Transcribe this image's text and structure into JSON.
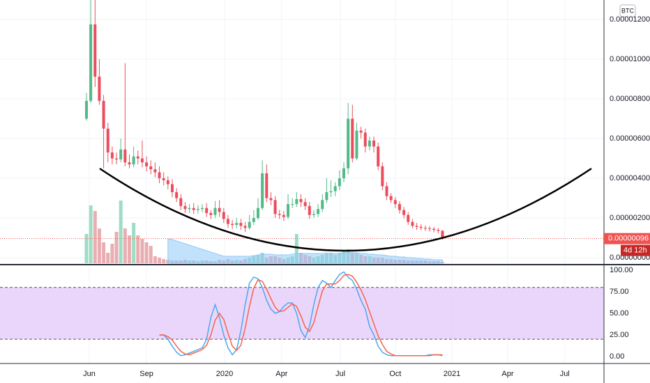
{
  "chart_data": {
    "type": "candlestick",
    "currency": "BTC",
    "countdown": "4d 12h",
    "xlim": [
      -20.16,
      120.65
    ],
    "xticks": [
      {
        "value": 0.65,
        "label": "Jun"
      },
      {
        "value": 14,
        "label": "Sep"
      },
      {
        "value": 32.2,
        "label": "2020"
      },
      {
        "value": 45.5,
        "label": "Apr"
      },
      {
        "value": 59.2,
        "label": "Jul"
      },
      {
        "value": 72,
        "label": "Oct"
      },
      {
        "value": 85.2,
        "label": "2021"
      },
      {
        "value": 98.2,
        "label": "Apr"
      },
      {
        "value": 111.5,
        "label": "Jul"
      }
    ],
    "ylim": [
      -2.8e-07,
      1.298e-05
    ],
    "yticks": [
      {
        "value": 0,
        "label": "0.00000000"
      },
      {
        "value": 2e-06,
        "label": "0.00000200"
      },
      {
        "value": 4e-06,
        "label": "0.00000400"
      },
      {
        "value": 6e-06,
        "label": "0.00000600"
      },
      {
        "value": 8e-06,
        "label": "0.00000800"
      },
      {
        "value": 1e-05,
        "label": "0.00001000"
      },
      {
        "value": 1.2e-05,
        "label": "0.00001200"
      }
    ],
    "grid": true,
    "candles": {
      "up_color": "#53b987",
      "down_color": "#eb4d5c",
      "open": [
        7e-06,
        7.9e-06,
        1.175e-05,
        9.12e-06,
        7.9e-06,
        6.5e-06,
        5.3e-06,
        5e-06,
        4.95e-06,
        5.45e-06,
        4.8e-06,
        4.7e-06,
        5.1e-06,
        5e-06,
        4.8e-06,
        4.6e-06,
        4.45e-06,
        4.3e-06,
        4e-06,
        3.9e-06,
        3.7e-06,
        3.3e-06,
        3e-06,
        2.6e-06,
        2.45e-06,
        2.5e-06,
        2.4e-06,
        2.45e-06,
        2.5e-06,
        2.25e-06,
        2.15e-06,
        2.5e-06,
        2.3e-06,
        1.95e-06,
        1.7e-06,
        1.65e-06,
        1.75e-06,
        1.6e-06,
        1.5e-06,
        1.8e-06,
        2e-06,
        2.5e-06,
        4.25e-06,
        3e-06,
        2.9e-06,
        2.2e-06,
        2.15e-06,
        2.05e-06,
        2.7e-06,
        2.7e-06,
        2.95e-06,
        2.8e-06,
        2.6e-06,
        2.15e-06,
        2.2e-06,
        2.45e-06,
        2.9e-06,
        3.3e-06,
        3.35e-06,
        3.6e-06,
        4e-06,
        4.5e-06,
        7e-06,
        5e-06,
        6.4e-06,
        6.3e-06,
        5.6e-06,
        5.9e-06,
        5.6e-06,
        4.6e-06,
        3.6e-06,
        3.1e-06,
        2.9e-06,
        2.7e-06,
        2.4e-06,
        2.15e-06,
        1.8e-06,
        1.6e-06,
        1.55e-06,
        1.5e-06,
        1.48e-06,
        1.45e-06,
        1.4e-06,
        1.35e-06
      ],
      "high": [
        8.3e-06,
        1.3e-05,
        1.3e-05,
        1e-05,
        8.2e-06,
        6.8e-06,
        5.6e-06,
        5.3e-06,
        6e-06,
        9.8e-06,
        5.2e-06,
        5.6e-06,
        5.4e-06,
        5.9e-06,
        5.1e-06,
        4.9e-06,
        4.8e-06,
        4.6e-06,
        4.3e-06,
        4.1e-06,
        3.95e-06,
        3.5e-06,
        3.2e-06,
        2.8e-06,
        2.7e-06,
        2.75e-06,
        2.65e-06,
        2.7e-06,
        2.75e-06,
        2.4e-06,
        2.85e-06,
        2.9e-06,
        2.5e-06,
        2.15e-06,
        1.9e-06,
        2e-06,
        1.95e-06,
        1.8e-06,
        2.15e-06,
        2.4e-06,
        3e-06,
        4.9e-06,
        4.7e-06,
        3.3e-06,
        3.1e-06,
        2.4e-06,
        2.35e-06,
        3.2e-06,
        3e-06,
        3.3e-06,
        3.2e-06,
        3e-06,
        2.8e-06,
        2.4e-06,
        2.7e-06,
        3.2e-06,
        4e-06,
        3.9e-06,
        3.8e-06,
        4.4e-06,
        4.8e-06,
        7.8e-06,
        7.7e-06,
        6.8e-06,
        6.6e-06,
        6.5e-06,
        6.1e-06,
        6.1e-06,
        5.8e-06,
        4.8e-06,
        3.8e-06,
        3.25e-06,
        3.05e-06,
        2.85e-06,
        2.55e-06,
        2.3e-06,
        1.95e-06,
        1.75e-06,
        1.68e-06,
        1.62e-06,
        1.58e-06,
        1.55e-06,
        1.5e-06,
        1.4e-06
      ],
      "low": [
        6.9e-06,
        7.8e-06,
        8.6e-06,
        7.7e-06,
        4.5e-06,
        4.8e-06,
        4.7e-06,
        4.7e-06,
        4.8e-06,
        4.6e-06,
        4.5e-06,
        4.55e-06,
        4.7e-06,
        4.55e-06,
        4.35e-06,
        4.2e-06,
        4.05e-06,
        3.75e-06,
        3.65e-06,
        3.45e-06,
        3.05e-06,
        2.8e-06,
        2.4e-06,
        2.25e-06,
        2.25e-06,
        2.2e-06,
        2.22e-06,
        2.28e-06,
        2.05e-06,
        1.95e-06,
        2e-06,
        2.05e-06,
        1.75e-06,
        1.5e-06,
        1.45e-06,
        1.48e-06,
        1.4e-06,
        1.3e-06,
        1.4e-06,
        1.65e-06,
        1.9e-06,
        2.4e-06,
        2.8e-06,
        2.65e-06,
        2e-06,
        1.95e-06,
        1.85e-06,
        1.95e-06,
        2.5e-06,
        2.55e-06,
        2.55e-06,
        2.4e-06,
        1.95e-06,
        2e-06,
        2.05e-06,
        2.3e-06,
        2.75e-06,
        3.05e-06,
        3.1e-06,
        3.4e-06,
        3.8e-06,
        4.2e-06,
        4.8e-06,
        4.9e-06,
        6e-06,
        5.3e-06,
        5.4e-06,
        5.3e-06,
        4.4e-06,
        3.4e-06,
        2.9e-06,
        2.75e-06,
        2.5e-06,
        2.22e-06,
        1.98e-06,
        1.65e-06,
        1.48e-06,
        1.4e-06,
        1.38e-06,
        1.35e-06,
        1.32e-06,
        1.28e-06,
        1.22e-06,
        9e-07
      ],
      "close": [
        7.9e-06,
        1.175e-05,
        9.12e-06,
        7.9e-06,
        6.5e-06,
        5.3e-06,
        5e-06,
        4.95e-06,
        5.45e-06,
        4.8e-06,
        4.7e-06,
        5.1e-06,
        5e-06,
        4.8e-06,
        4.6e-06,
        4.45e-06,
        4.3e-06,
        4e-06,
        3.9e-06,
        3.7e-06,
        3.3e-06,
        3e-06,
        2.6e-06,
        2.45e-06,
        2.5e-06,
        2.4e-06,
        2.45e-06,
        2.5e-06,
        2.25e-06,
        2.15e-06,
        2.5e-06,
        2.3e-06,
        1.95e-06,
        1.7e-06,
        1.65e-06,
        1.75e-06,
        1.6e-06,
        1.5e-06,
        1.8e-06,
        2e-06,
        2.5e-06,
        4.25e-06,
        3e-06,
        2.9e-06,
        2.2e-06,
        2.15e-06,
        2.05e-06,
        2.7e-06,
        2.7e-06,
        2.95e-06,
        2.8e-06,
        2.6e-06,
        2.15e-06,
        2.2e-06,
        2.45e-06,
        2.9e-06,
        3.3e-06,
        3.35e-06,
        3.6e-06,
        4e-06,
        4.5e-06,
        7e-06,
        5e-06,
        6.4e-06,
        6.3e-06,
        5.6e-06,
        5.9e-06,
        5.6e-06,
        4.6e-06,
        3.6e-06,
        3.1e-06,
        2.9e-06,
        2.7e-06,
        2.4e-06,
        2.15e-06,
        1.8e-06,
        1.6e-06,
        1.55e-06,
        1.5e-06,
        1.48e-06,
        1.45e-06,
        1.4e-06,
        1.35e-06,
        9.6e-07
      ]
    },
    "volume": {
      "up_color": "#9fdcc4",
      "down_color": "#e9aeb2",
      "values": [
        42,
        83,
        75,
        50,
        30,
        15,
        28,
        45,
        90,
        50,
        40,
        58,
        40,
        35,
        30,
        25,
        10,
        8,
        6,
        5,
        4,
        4,
        4,
        5,
        4,
        4,
        3,
        4,
        4,
        3,
        3,
        5,
        4,
        6,
        4,
        5,
        4,
        6,
        8,
        10,
        12,
        15,
        8,
        10,
        10,
        8,
        6,
        8,
        10,
        42,
        15,
        12,
        10,
        8,
        10,
        12,
        15,
        15,
        12,
        15,
        18,
        20,
        15,
        15,
        12,
        10,
        10,
        8,
        8,
        8,
        6,
        6,
        5,
        5,
        5,
        4,
        4,
        4,
        4,
        4,
        3,
        3,
        3,
        2
      ],
      "ma": {
        "color": "#90caf9",
        "values": [
          null,
          null,
          null,
          null,
          null,
          null,
          null,
          null,
          null,
          null,
          null,
          null,
          null,
          null,
          null,
          null,
          null,
          null,
          null,
          35,
          34,
          32,
          30,
          28,
          26,
          24,
          22,
          20,
          18,
          16,
          14,
          12,
          10,
          10,
          10,
          10,
          10,
          10,
          10,
          11,
          12,
          13,
          13,
          13,
          12,
          12,
          12,
          12,
          13,
          14,
          14,
          14,
          14,
          14,
          14,
          14,
          14,
          14,
          14,
          14,
          15,
          15,
          15,
          15,
          14,
          14,
          13,
          13,
          12,
          12,
          11,
          10,
          10,
          9,
          9,
          8,
          8,
          7,
          7,
          6,
          6,
          5,
          5,
          5
        ]
      }
    },
    "last_price": {
      "value": 9.6e-07,
      "label": "0.00000096",
      "color": "#ef5350"
    },
    "oscillator": {
      "type": "line",
      "ylim": [
        -8.1,
        104.8
      ],
      "yticks": [
        {
          "value": 100,
          "label": "100.00"
        },
        {
          "value": 75,
          "label": "75.00"
        },
        {
          "value": 50,
          "label": "50.00"
        },
        {
          "value": 25,
          "label": "25.00"
        },
        {
          "value": 0,
          "label": "0.00"
        }
      ],
      "bands": [
        20,
        80
      ],
      "band_color": "#e6ccfa",
      "k": {
        "color": "#4ba8ea",
        "values": [
          null,
          null,
          null,
          null,
          null,
          null,
          null,
          null,
          null,
          null,
          null,
          null,
          null,
          null,
          null,
          null,
          null,
          25,
          25,
          20,
          12,
          5,
          1,
          2,
          4,
          6,
          8,
          10,
          20,
          45,
          60,
          45,
          25,
          10,
          2,
          8,
          30,
          60,
          85,
          92,
          90,
          80,
          65,
          55,
          50,
          52,
          58,
          62,
          62,
          50,
          30,
          22,
          35,
          60,
          80,
          88,
          85,
          80,
          88,
          95,
          98,
          92,
          88,
          78,
          65,
          55,
          35,
          25,
          12,
          5,
          2,
          1,
          1,
          1,
          1,
          1,
          1,
          1,
          1,
          1,
          2,
          2,
          2,
          1
        ]
      },
      "d": {
        "color": "#f6624a",
        "values": [
          null,
          null,
          null,
          null,
          null,
          null,
          null,
          null,
          null,
          null,
          null,
          null,
          null,
          null,
          null,
          null,
          null,
          25,
          25,
          23,
          19,
          12,
          6,
          3,
          2,
          4,
          6,
          8,
          13,
          25,
          42,
          50,
          43,
          27,
          12,
          7,
          13,
          33,
          58,
          79,
          89,
          87,
          78,
          67,
          57,
          52,
          53,
          57,
          61,
          58,
          47,
          34,
          29,
          39,
          58,
          76,
          84,
          84,
          84,
          88,
          94,
          95,
          93,
          86,
          77,
          66,
          52,
          38,
          24,
          14,
          6,
          3,
          1,
          1,
          1,
          1,
          1,
          1,
          1,
          1,
          1,
          2,
          2,
          2
        ]
      }
    }
  }
}
